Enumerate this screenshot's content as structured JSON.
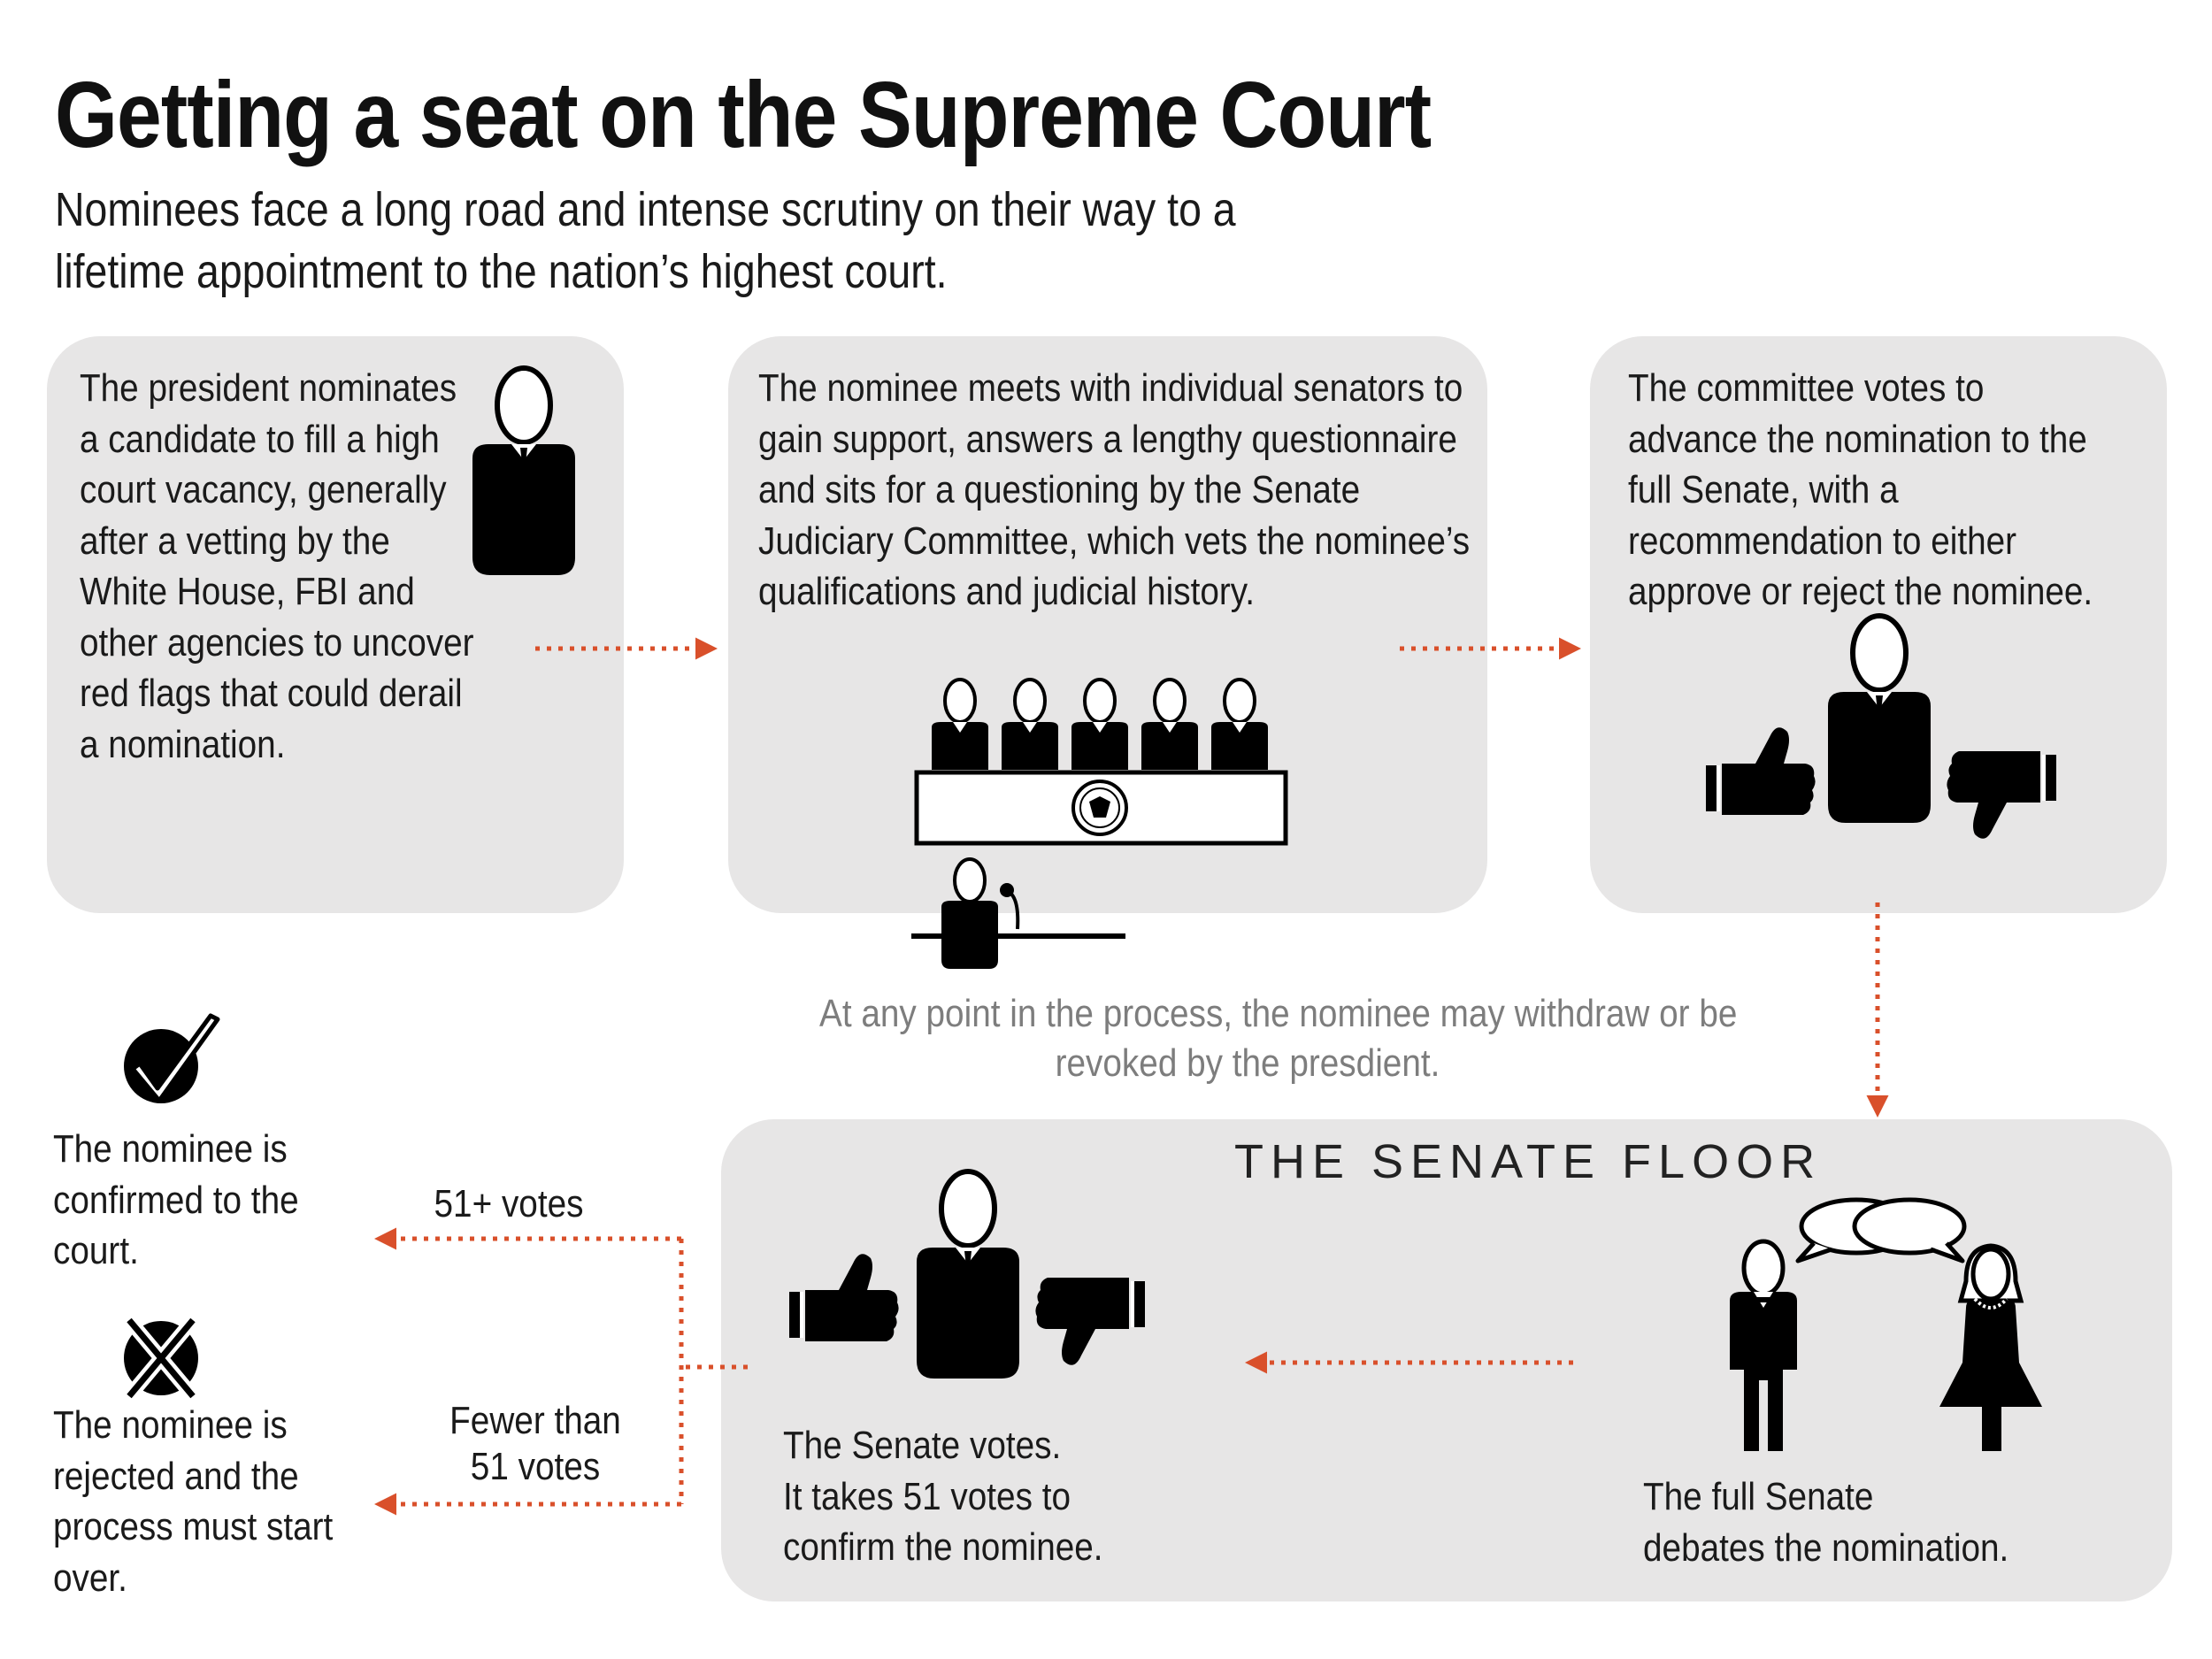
{
  "header": {
    "title": "Getting a seat on the Supreme Court",
    "subtitle": "Nominees face a long road and intense scrutiny on their way to a lifetime appointment to the nation’s highest court."
  },
  "steps": {
    "nominate": {
      "lines": [
        "The president nominates",
        "a candidate to fill a high",
        "court vacancy, generally",
        "after a vetting by the",
        "White House, FBI and",
        "other agencies to uncover",
        "red flags that could derail",
        "a nomination."
      ]
    },
    "hearings": {
      "lines": [
        "The nominee meets with individual senators to",
        "gain support, answers a lengthy questionnaire",
        "and sits for a questioning by the Senate",
        "Judiciary Committee, which vets the nominee’s",
        "qualifications and judicial history."
      ]
    },
    "committee": {
      "lines": [
        "The committee votes to",
        "advance the nomination to the",
        "full Senate, with a",
        "recommendation to either",
        "approve or reject the nominee."
      ]
    }
  },
  "note": {
    "lines": [
      "At any point in the process, the nominee may withdraw or be",
      "revoked by the presdient."
    ]
  },
  "senate_floor": {
    "title": "THE SENATE FLOOR",
    "vote_lines": [
      "The Senate votes.",
      "It takes 51 votes to",
      "confirm the nominee."
    ],
    "debate_lines": [
      "The full Senate",
      "debates the nomination."
    ]
  },
  "outcomes": {
    "confirmed_lines": [
      "The nominee is",
      "confirmed to the",
      "court."
    ],
    "rejected_lines": [
      "The nominee is",
      "rejected and the",
      "process must start",
      "over."
    ],
    "pass_label": "51+ votes",
    "fail_label_lines": [
      "Fewer than",
      "51 votes"
    ]
  },
  "colors": {
    "arrow": "#d9502b",
    "card": "#e7e6e6",
    "note_text": "#7d7d7d"
  },
  "icons": [
    "president-icon",
    "committee-panel-icon",
    "seal-icon",
    "nominee-at-desk-icon",
    "thumbs-up-icon",
    "thumbs-down-icon",
    "nominee-icon",
    "checkmark-icon",
    "x-mark-icon",
    "senator-man-icon",
    "senator-woman-icon",
    "speech-bubbles-icon"
  ]
}
